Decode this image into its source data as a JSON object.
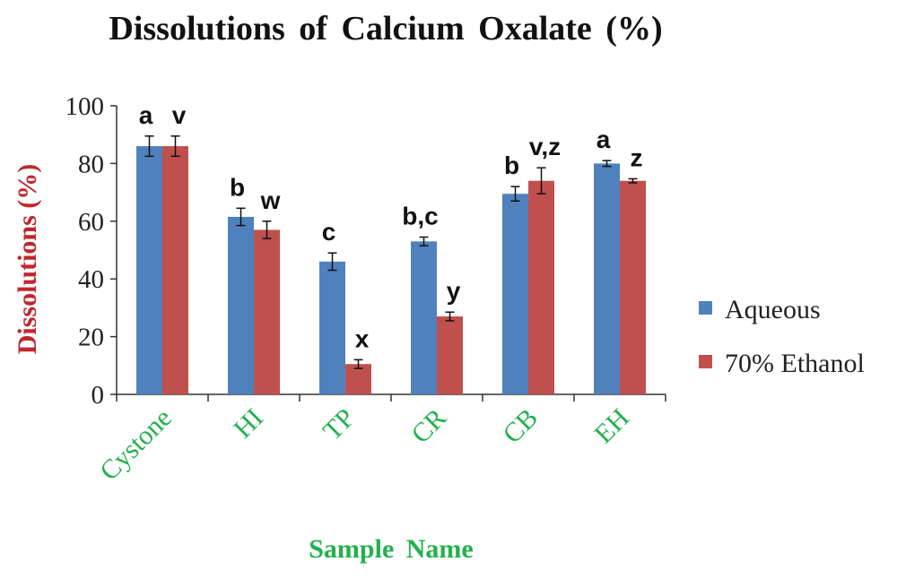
{
  "chart_data": {
    "type": "bar",
    "title": "Dissolutions of Calcium Oxalate (%)",
    "xlabel": "Sample Name",
    "ylabel": "Dissolutions  (%)",
    "categories": [
      "Cystone",
      "HI",
      "TP",
      "CR",
      "CB",
      "EH"
    ],
    "ylim": [
      0,
      100
    ],
    "yticks": [
      0,
      20,
      40,
      60,
      80,
      100
    ],
    "grid": false,
    "legend_position": "right",
    "series": [
      {
        "name": "Aqueous",
        "color": "#4F81BD",
        "values": [
          86,
          61.5,
          46,
          53,
          69.5,
          80
        ],
        "errors": [
          3.5,
          3,
          3,
          1.5,
          2.5,
          1
        ],
        "labels": [
          "a",
          "b",
          "c",
          "b,c",
          "b",
          "a"
        ]
      },
      {
        "name": "70% Ethanol",
        "color": "#C0504D",
        "values": [
          86,
          57,
          10.5,
          27,
          74,
          74
        ],
        "errors": [
          3.5,
          3,
          1.5,
          1.5,
          4.5,
          0.7
        ],
        "labels": [
          "v",
          "w",
          "x",
          "y",
          "v,z",
          "z"
        ]
      }
    ],
    "colors": {
      "ylabel": "#C0272D",
      "xlabel": "#22B14C",
      "category_labels": "#22B14C",
      "axis": "#333333"
    }
  }
}
